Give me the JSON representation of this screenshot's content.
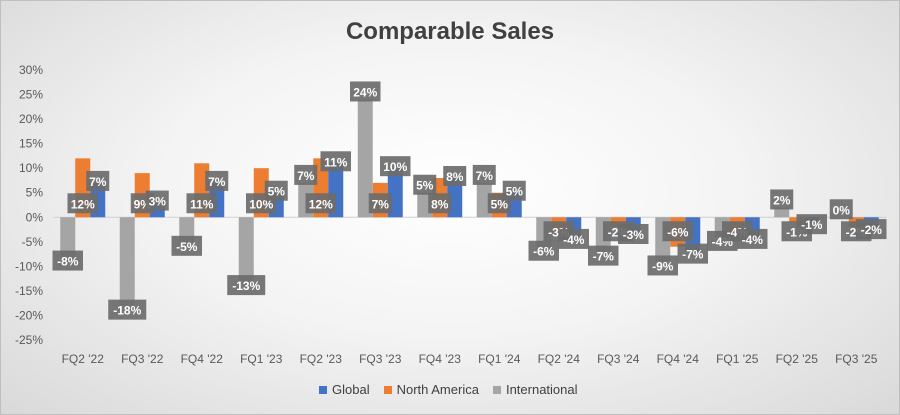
{
  "chart_data": {
    "type": "bar",
    "title": "Comparable Sales",
    "categories": [
      "FQ2 '22",
      "FQ3 '22",
      "FQ4 '22",
      "FQ1 '23",
      "FQ2 '23",
      "FQ3 '23",
      "FQ4 '23",
      "FQ1 '24",
      "FQ2 '24",
      "FQ3 '24",
      "FQ4 '24",
      "FQ1 '25",
      "FQ2 '25",
      "FQ3 '25"
    ],
    "series": [
      {
        "name": "International",
        "color": "#a5a5a5",
        "values": [
          -8,
          -18,
          -5,
          -13,
          7,
          24,
          5,
          7,
          -6,
          -7,
          -9,
          -4,
          2,
          0
        ]
      },
      {
        "name": "North America",
        "color": "#ed7d31",
        "values": [
          12,
          9,
          11,
          10,
          12,
          7,
          8,
          5,
          -3,
          -2,
          -6,
          -4,
          -1,
          -2
        ]
      },
      {
        "name": "Global",
        "color": "#4472c4",
        "values": [
          7,
          3,
          7,
          5,
          11,
          10,
          8,
          5,
          -4,
          -3,
          -7,
          -4,
          -1,
          -2
        ]
      }
    ],
    "ylim": [
      -25,
      30
    ],
    "yticks": [
      30,
      25,
      20,
      15,
      10,
      5,
      0,
      -5,
      -10,
      -15,
      -20,
      -25
    ],
    "ytick_labels": [
      "30%",
      "25%",
      "20%",
      "15%",
      "10%",
      "5%",
      "0%",
      "-5%",
      "-10%",
      "-15%",
      "-20%",
      "-25%"
    ],
    "data_labels": {
      "International": [
        "-8%",
        "-18%",
        "-5%",
        "-13%",
        "7%",
        "24%",
        "5%",
        "7%",
        "-6%",
        "-7%",
        "-9%",
        "-4%",
        "2%",
        "0%"
      ],
      "North America": [
        "12%",
        "9%",
        "11%",
        "10%",
        "12%",
        "7%",
        "8%",
        "5%",
        "-3%",
        "-2%",
        "-6%",
        "-4%",
        "-1%",
        "-2%"
      ],
      "Global": [
        "7%",
        "3%",
        "7%",
        "5%",
        "11%",
        "10%",
        "8%",
        "5%",
        "-4%",
        "-3%",
        "-7%",
        "-4%",
        "-1%",
        "-2%"
      ]
    },
    "grid": false,
    "legend_position": "bottom",
    "legend": [
      "Global",
      "North America",
      "International"
    ]
  }
}
